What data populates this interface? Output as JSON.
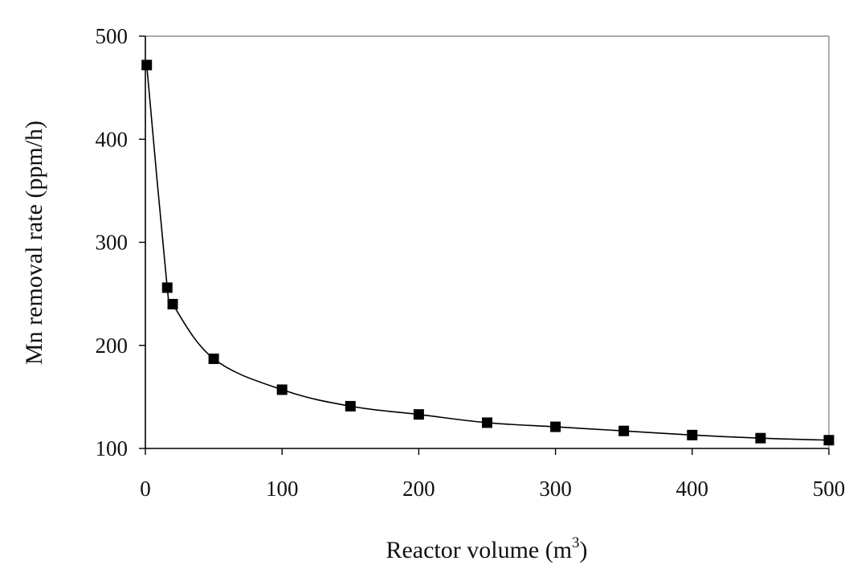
{
  "chart_data": {
    "type": "scatter",
    "title": "",
    "xlabel": "Reactor volume (m",
    "xlabel_sup": "3",
    "xlabel_close": ")",
    "ylabel": "Mn removal rate (ppm/h)",
    "xlim": [
      0,
      500
    ],
    "ylim": [
      100,
      500
    ],
    "xticks": [
      0,
      100,
      200,
      300,
      400,
      500
    ],
    "yticks": [
      100,
      200,
      300,
      400,
      500
    ],
    "grid": false,
    "legend": "none",
    "series": [
      {
        "marker": "square",
        "line": "smooth",
        "color": "#000000",
        "x": [
          1,
          16,
          20,
          50,
          100,
          150,
          200,
          250,
          300,
          350,
          400,
          450,
          500
        ],
        "y": [
          472,
          256,
          240,
          187,
          157,
          141,
          133,
          125,
          121,
          117,
          113,
          110,
          108
        ]
      }
    ]
  }
}
